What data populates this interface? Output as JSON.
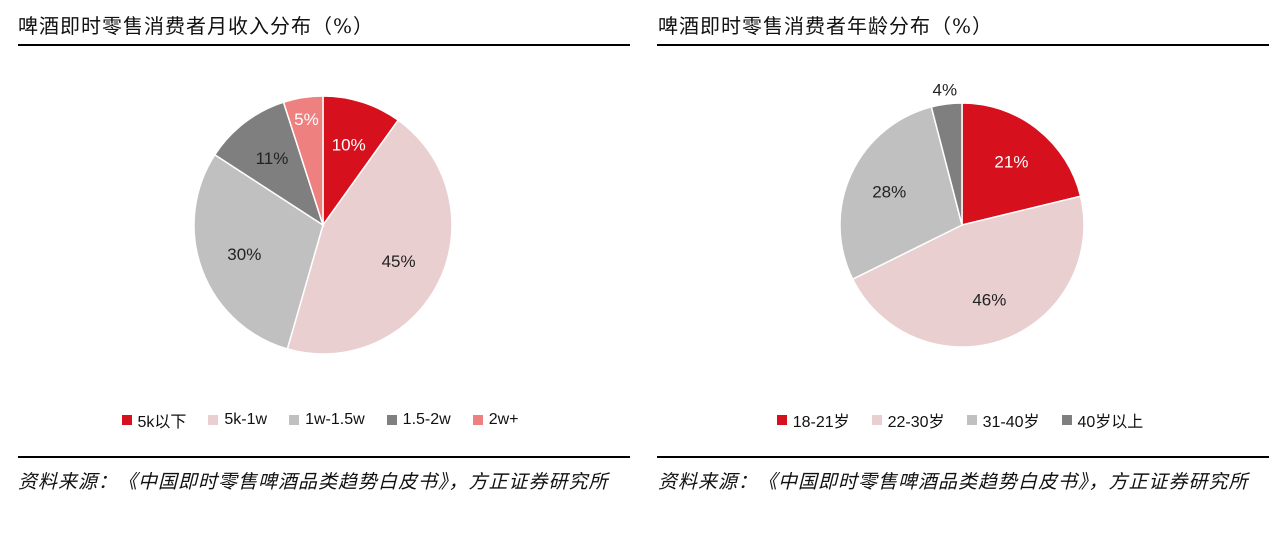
{
  "colors": {
    "red": "#d7101d",
    "light_pink": "#e9cfd0",
    "light_gray": "#c0c0c0",
    "dark_gray": "#7f7f7f",
    "salmon": "#ef8080"
  },
  "chart_data": [
    {
      "type": "pie",
      "title": "啤酒即时零售消费者月收入分布（%）",
      "categories": [
        "5k以下",
        "5k-1w",
        "1w-1.5w",
        "1.5-2w",
        "2w+"
      ],
      "values": [
        10,
        45,
        30,
        11,
        5
      ],
      "labels": [
        "10%",
        "45%",
        "30%",
        "11%",
        "5%"
      ],
      "series_colors": [
        "#d7101d",
        "#e9cfd0",
        "#c0c0c0",
        "#7f7f7f",
        "#ef8080"
      ],
      "legend_position": "bottom",
      "source": "资料来源：《中国即时零售啤酒品类趋势白皮书》，方正证券研究所"
    },
    {
      "type": "pie",
      "title": "啤酒即时零售消费者年龄分布（%）",
      "categories": [
        "18-21岁",
        "22-30岁",
        "31-40岁",
        "40岁以上"
      ],
      "values": [
        21,
        46,
        28,
        4
      ],
      "labels": [
        "21%",
        "46%",
        "28%",
        "4%"
      ],
      "series_colors": [
        "#d7101d",
        "#e9cfd0",
        "#c0c0c0",
        "#7f7f7f"
      ],
      "legend_position": "bottom",
      "source": "资料来源：《中国即时零售啤酒品类趋势白皮书》，方正证券研究所"
    }
  ]
}
